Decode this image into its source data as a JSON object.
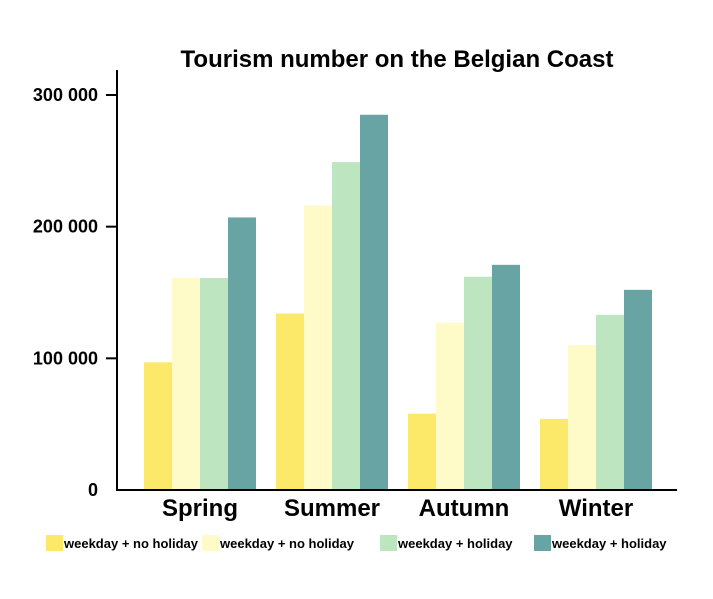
{
  "chart_data": {
    "type": "bar",
    "title": "Tourism number on the Belgian Coast",
    "xlabel": "",
    "ylabel": "",
    "categories": [
      "Spring",
      "Summer",
      "Autumn",
      "Winter"
    ],
    "ylim": [
      0,
      300000
    ],
    "yticks": [
      0,
      100000,
      200000,
      300000
    ],
    "ytick_labels": [
      "0",
      "100 000",
      "200 000",
      "300 000"
    ],
    "grid": false,
    "legend_position": "bottom",
    "series": [
      {
        "name": "weekday + no holiday",
        "color": "#fce96a",
        "values": [
          97000,
          134000,
          58000,
          54000
        ]
      },
      {
        "name": "weekday + no holiday",
        "color": "#fffbc8",
        "values": [
          161000,
          216000,
          127000,
          110000
        ]
      },
      {
        "name": "weekday + holiday",
        "color": "#bde6c0",
        "values": [
          161000,
          249000,
          162000,
          133000
        ]
      },
      {
        "name": "weekday + holiday",
        "color": "#68a4a3",
        "values": [
          207000,
          285000,
          171000,
          152000
        ]
      }
    ]
  }
}
